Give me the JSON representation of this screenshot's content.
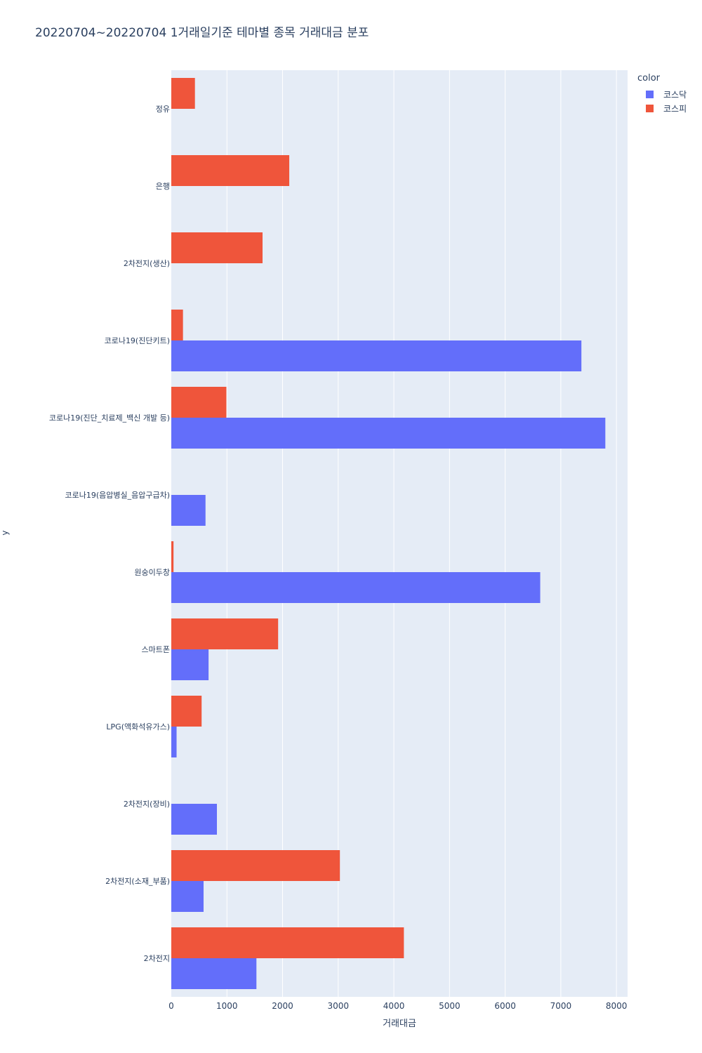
{
  "chart_data": {
    "type": "bar",
    "orientation": "horizontal",
    "barmode": "group",
    "title": "20220704~20220704 1거래일기준 테마별 종목 거래대금 분포",
    "xlabel": "거래대금",
    "ylabel": "y",
    "legend_title": "color",
    "legend_position": "top-right",
    "grid": true,
    "xlim": [
      0,
      8200
    ],
    "xticks": [
      0,
      1000,
      2000,
      3000,
      4000,
      5000,
      6000,
      7000,
      8000
    ],
    "categories": [
      "2차전지",
      "2차전지(소재_부품)",
      "2차전지(장비)",
      "LPG(액화석유가스)",
      "스마트폰",
      "원숭이두창",
      "코로나19(음압병실_음압구급차)",
      "코로나19(진단_치료제_백신 개발 등)",
      "코로나19(진단키트)",
      "2차전지(생산)",
      "은행",
      "정유"
    ],
    "series": [
      {
        "name": "코스닥",
        "color": "#636efa",
        "values": [
          1530,
          580,
          820,
          95,
          670,
          6630,
          615,
          7800,
          7370,
          null,
          null,
          null
        ]
      },
      {
        "name": "코스피",
        "color": "#ef553b",
        "values": [
          4180,
          3030,
          null,
          545,
          1920,
          40,
          null,
          990,
          210,
          1640,
          2120,
          425
        ]
      }
    ]
  }
}
